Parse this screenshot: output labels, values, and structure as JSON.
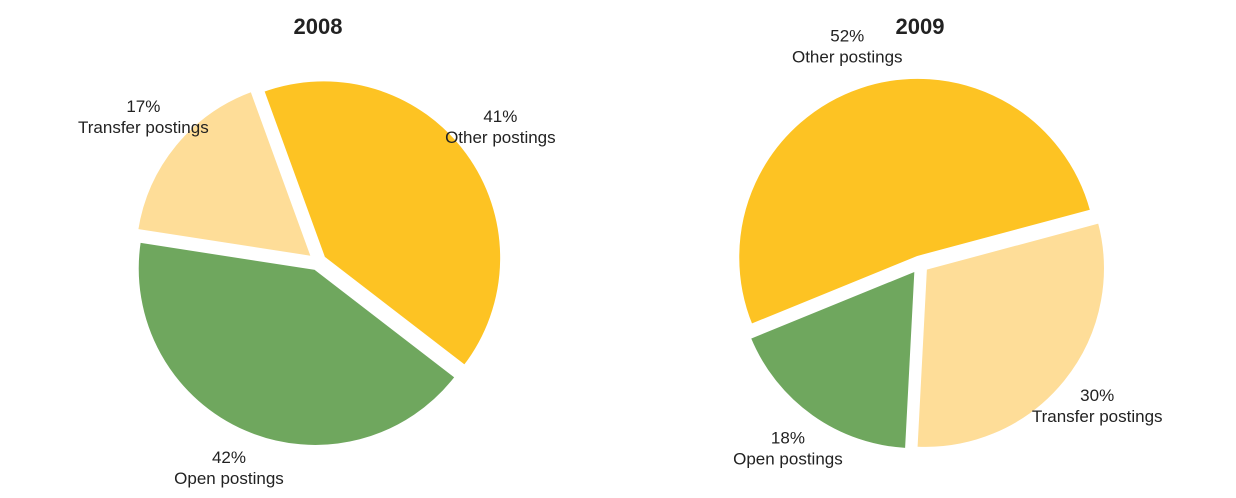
{
  "chart_data": [
    {
      "type": "pie",
      "title": "2008",
      "categories": [
        "Other postings",
        "Open postings",
        "Transfer postings"
      ],
      "values": [
        41,
        42,
        17
      ],
      "value_labels": [
        "41%",
        "42%",
        "17%"
      ],
      "colors": [
        "#fdc323",
        "#6fa75e",
        "#fedd98"
      ]
    },
    {
      "type": "pie",
      "title": "2009",
      "categories": [
        "Transfer postings",
        "Open postings",
        "Other postings"
      ],
      "values": [
        30,
        18,
        52
      ],
      "value_labels": [
        "30%",
        "18%",
        "52%"
      ],
      "colors": [
        "#fedd98",
        "#6fa75e",
        "#fdc323"
      ]
    }
  ]
}
